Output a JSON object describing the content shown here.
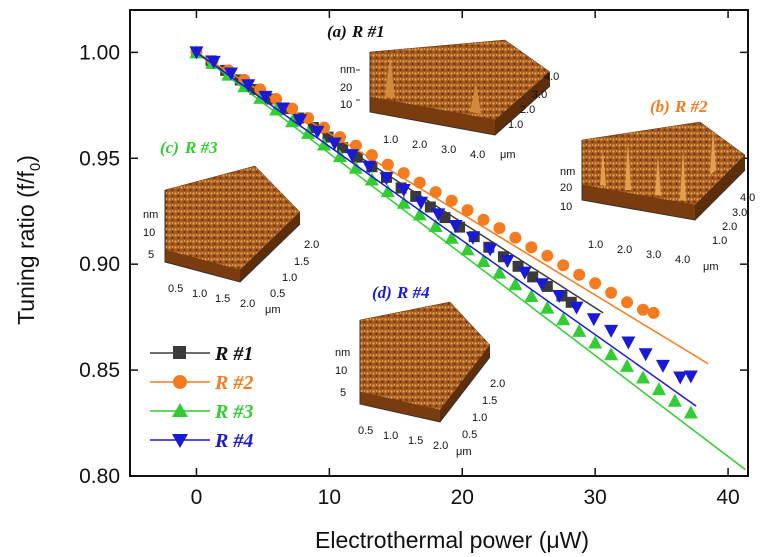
{
  "chart_data": {
    "type": "scatter",
    "xlabel_main": "Electrothermal power (",
    "xlabel_unit": "μW",
    "xlabel_close": ")",
    "ylabel_main": "Tuning ratio (f/f",
    "ylabel_sub": "0",
    "ylabel_close": ")",
    "xlim": [
      -5,
      41.5
    ],
    "ylim": [
      0.8,
      1.02
    ],
    "x_ticks": [
      0,
      10,
      20,
      30,
      40
    ],
    "x_tick_labels": [
      "0",
      "10",
      "20",
      "30",
      "40"
    ],
    "y_ticks": [
      0.8,
      0.85,
      0.9,
      0.95,
      1.0
    ],
    "y_tick_labels": [
      "0.80",
      "0.85",
      "0.90",
      "0.95",
      "1.00"
    ],
    "legend_position": "bottom-left",
    "series": [
      {
        "name": "R #1",
        "color": "#3a3a3a",
        "marker": "square",
        "fit": [
          [
            0,
            1.0
          ],
          [
            30.6,
            0.877
          ]
        ],
        "points": [
          [
            0,
            1.0
          ],
          [
            1.1,
            0.996
          ],
          [
            2.2,
            0.9915
          ],
          [
            3.3,
            0.987
          ],
          [
            4.4,
            0.9825
          ],
          [
            5.5,
            0.978
          ],
          [
            6.6,
            0.9735
          ],
          [
            7.7,
            0.969
          ],
          [
            8.8,
            0.9645
          ],
          [
            9.9,
            0.96
          ],
          [
            11,
            0.955
          ],
          [
            12.1,
            0.9505
          ],
          [
            13.2,
            0.946
          ],
          [
            14.3,
            0.941
          ],
          [
            15.4,
            0.936
          ],
          [
            16.5,
            0.932
          ],
          [
            17.6,
            0.927
          ],
          [
            18.7,
            0.922
          ],
          [
            19.8,
            0.9175
          ],
          [
            20.9,
            0.913
          ],
          [
            22,
            0.908
          ],
          [
            23.1,
            0.9035
          ],
          [
            24.2,
            0.899
          ],
          [
            25.3,
            0.894
          ],
          [
            26.4,
            0.8895
          ],
          [
            27.5,
            0.885
          ],
          [
            28.2,
            0.882
          ]
        ]
      },
      {
        "name": "R #2",
        "color": "#f47c20",
        "marker": "circle",
        "fit": [
          [
            0,
            1.0
          ],
          [
            38.5,
            0.853
          ]
        ],
        "points": [
          [
            0,
            1.0
          ],
          [
            1.2,
            0.996
          ],
          [
            2.4,
            0.9915
          ],
          [
            3.6,
            0.987
          ],
          [
            4.8,
            0.9825
          ],
          [
            6,
            0.978
          ],
          [
            7.2,
            0.9735
          ],
          [
            8.4,
            0.969
          ],
          [
            9.6,
            0.9645
          ],
          [
            10.8,
            0.96
          ],
          [
            12,
            0.956
          ],
          [
            13.2,
            0.9515
          ],
          [
            14.4,
            0.947
          ],
          [
            15.6,
            0.943
          ],
          [
            16.8,
            0.9385
          ],
          [
            18,
            0.934
          ],
          [
            19.2,
            0.93
          ],
          [
            20.4,
            0.9255
          ],
          [
            21.6,
            0.921
          ],
          [
            22.8,
            0.917
          ],
          [
            24,
            0.9125
          ],
          [
            25.2,
            0.908
          ],
          [
            26.4,
            0.904
          ],
          [
            27.6,
            0.8995
          ],
          [
            28.8,
            0.895
          ],
          [
            30,
            0.891
          ],
          [
            31.2,
            0.8865
          ],
          [
            32.4,
            0.882
          ],
          [
            33.6,
            0.8785
          ],
          [
            34.4,
            0.877
          ]
        ]
      },
      {
        "name": "R #3",
        "color": "#33cc33",
        "marker": "triangle-up",
        "fit": [
          [
            0,
            1.0
          ],
          [
            41.3,
            0.803
          ]
        ],
        "points": [
          [
            0,
            1.0
          ],
          [
            1.2,
            0.995
          ],
          [
            2.4,
            0.9895
          ],
          [
            3.6,
            0.984
          ],
          [
            4.8,
            0.9785
          ],
          [
            6,
            0.973
          ],
          [
            7.2,
            0.9675
          ],
          [
            8.4,
            0.962
          ],
          [
            9.6,
            0.9565
          ],
          [
            10.8,
            0.951
          ],
          [
            12,
            0.9455
          ],
          [
            13.2,
            0.94
          ],
          [
            14.4,
            0.9345
          ],
          [
            15.6,
            0.929
          ],
          [
            16.8,
            0.9235
          ],
          [
            18,
            0.918
          ],
          [
            19.2,
            0.9125
          ],
          [
            20.4,
            0.907
          ],
          [
            21.6,
            0.9015
          ],
          [
            22.8,
            0.896
          ],
          [
            24,
            0.8905
          ],
          [
            25.2,
            0.885
          ],
          [
            26.4,
            0.8795
          ],
          [
            27.6,
            0.874
          ],
          [
            28.8,
            0.8685
          ],
          [
            30,
            0.863
          ],
          [
            31.2,
            0.8575
          ],
          [
            32.4,
            0.852
          ],
          [
            33.6,
            0.8465
          ],
          [
            34.8,
            0.841
          ],
          [
            36,
            0.8355
          ],
          [
            37.2,
            0.83
          ]
        ]
      },
      {
        "name": "R #4",
        "color": "#1a1ad6",
        "marker": "triangle-down",
        "fit": [
          [
            0,
            1.0
          ],
          [
            37.6,
            0.833
          ]
        ],
        "points": [
          [
            0,
            1.0
          ],
          [
            1.3,
            0.9955
          ],
          [
            2.6,
            0.99
          ],
          [
            3.9,
            0.9845
          ],
          [
            5.2,
            0.979
          ],
          [
            6.5,
            0.9735
          ],
          [
            7.8,
            0.968
          ],
          [
            9.1,
            0.9625
          ],
          [
            10.4,
            0.957
          ],
          [
            11.7,
            0.9515
          ],
          [
            13,
            0.946
          ],
          [
            14.3,
            0.9405
          ],
          [
            15.6,
            0.935
          ],
          [
            16.9,
            0.929
          ],
          [
            18.2,
            0.9235
          ],
          [
            19.5,
            0.918
          ],
          [
            20.8,
            0.9125
          ],
          [
            22.1,
            0.907
          ],
          [
            23.4,
            0.9015
          ],
          [
            24.7,
            0.896
          ],
          [
            26,
            0.8905
          ],
          [
            27.3,
            0.885
          ],
          [
            28.6,
            0.8795
          ],
          [
            29.9,
            0.874
          ],
          [
            31.2,
            0.8685
          ],
          [
            32.5,
            0.863
          ],
          [
            33.8,
            0.8575
          ],
          [
            35.1,
            0.852
          ],
          [
            36.4,
            0.8465
          ],
          [
            37.2,
            0.847
          ]
        ]
      }
    ]
  },
  "insets": [
    {
      "id": "a",
      "label_letter": "(a)",
      "label_name": "R #1",
      "label_color": "#111111",
      "z_unit": "nm",
      "z_ticks": [
        "20",
        "10"
      ],
      "xy_unit": "μm",
      "x_ticks": [
        "1.0",
        "2.0",
        "3.0",
        "4.0"
      ],
      "y_ticks": [
        "1.0",
        "2.0",
        "3.0",
        "4.0"
      ]
    },
    {
      "id": "b",
      "label_letter": "(b)",
      "label_name": "R #2",
      "label_color": "#f47c20",
      "z_unit": "nm",
      "z_ticks": [
        "20",
        "10"
      ],
      "xy_unit": "μm",
      "x_ticks": [
        "1.0",
        "2.0",
        "3.0",
        "4.0"
      ],
      "y_ticks": [
        "1.0",
        "2.0",
        "3.0",
        "4.0"
      ]
    },
    {
      "id": "c",
      "label_letter": "(c)",
      "label_name": "R #3",
      "label_color": "#33cc33",
      "z_unit": "nm",
      "z_ticks": [
        "10",
        "5"
      ],
      "xy_unit": "μm",
      "x_ticks": [
        "0.5",
        "1.0",
        "1.5",
        "2.0"
      ],
      "y_ticks": [
        "0.5",
        "1.0",
        "1.5",
        "2.0"
      ]
    },
    {
      "id": "d",
      "label_letter": "(d)",
      "label_name": "R #4",
      "label_color": "#1a1ad6",
      "z_unit": "nm",
      "z_ticks": [
        "10",
        "5"
      ],
      "xy_unit": "μm",
      "x_ticks": [
        "0.5",
        "1.0",
        "1.5",
        "2.0"
      ],
      "y_ticks": [
        "0.5",
        "1.0",
        "1.5",
        "2.0"
      ]
    }
  ]
}
